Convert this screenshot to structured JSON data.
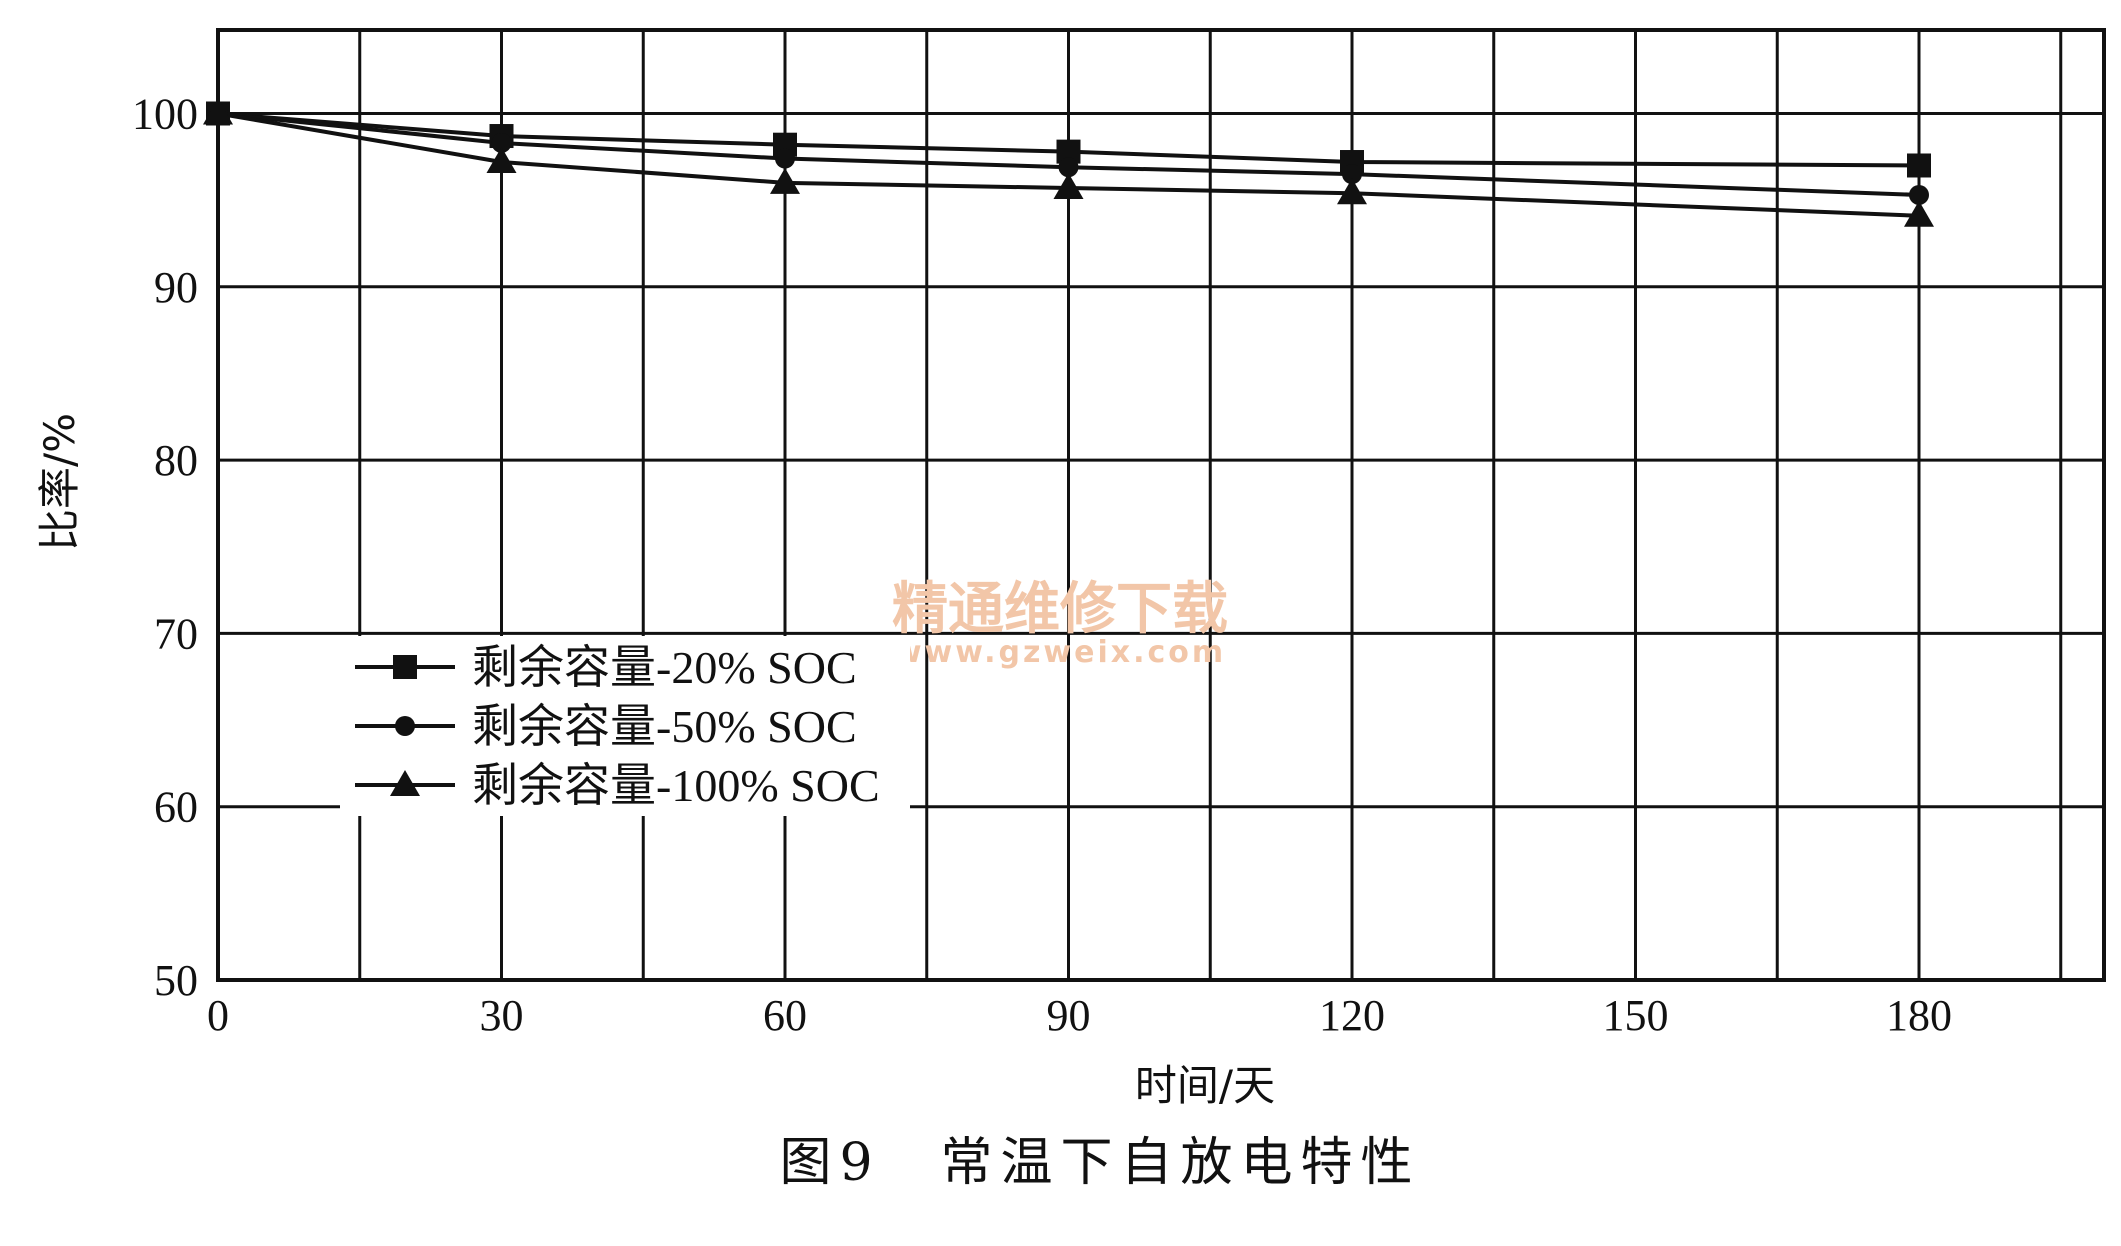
{
  "chart_data": {
    "type": "line",
    "xlabel": "时间/天",
    "ylabel": "比率/%",
    "xlim": [
      0,
      200
    ],
    "ylim": [
      50,
      105
    ],
    "xticks": [
      0,
      30,
      60,
      90,
      120,
      150,
      180
    ],
    "yticks": [
      50,
      60,
      70,
      80,
      90,
      100
    ],
    "grid": true,
    "legend_position": "lower-left",
    "series": [
      {
        "name": "剩余容量-20% SOC",
        "marker": "square",
        "x": [
          0,
          30,
          60,
          90,
          120,
          180
        ],
        "values": [
          100,
          98.7,
          98.2,
          97.8,
          97.2,
          97.0
        ]
      },
      {
        "name": "剩余容量-50% SOC",
        "marker": "circle",
        "x": [
          0,
          30,
          60,
          90,
          120,
          180
        ],
        "values": [
          100,
          98.3,
          97.4,
          96.9,
          96.5,
          95.3
        ]
      },
      {
        "name": "剩余容量-100% SOC",
        "marker": "triangle",
        "x": [
          0,
          30,
          60,
          90,
          120,
          180
        ],
        "values": [
          100,
          97.2,
          96.0,
          95.7,
          95.4,
          94.1
        ]
      }
    ]
  },
  "caption": "图9　常温下自放电特性",
  "watermark": {
    "text": "精通维修下载",
    "url": "www.gzweix.com"
  }
}
